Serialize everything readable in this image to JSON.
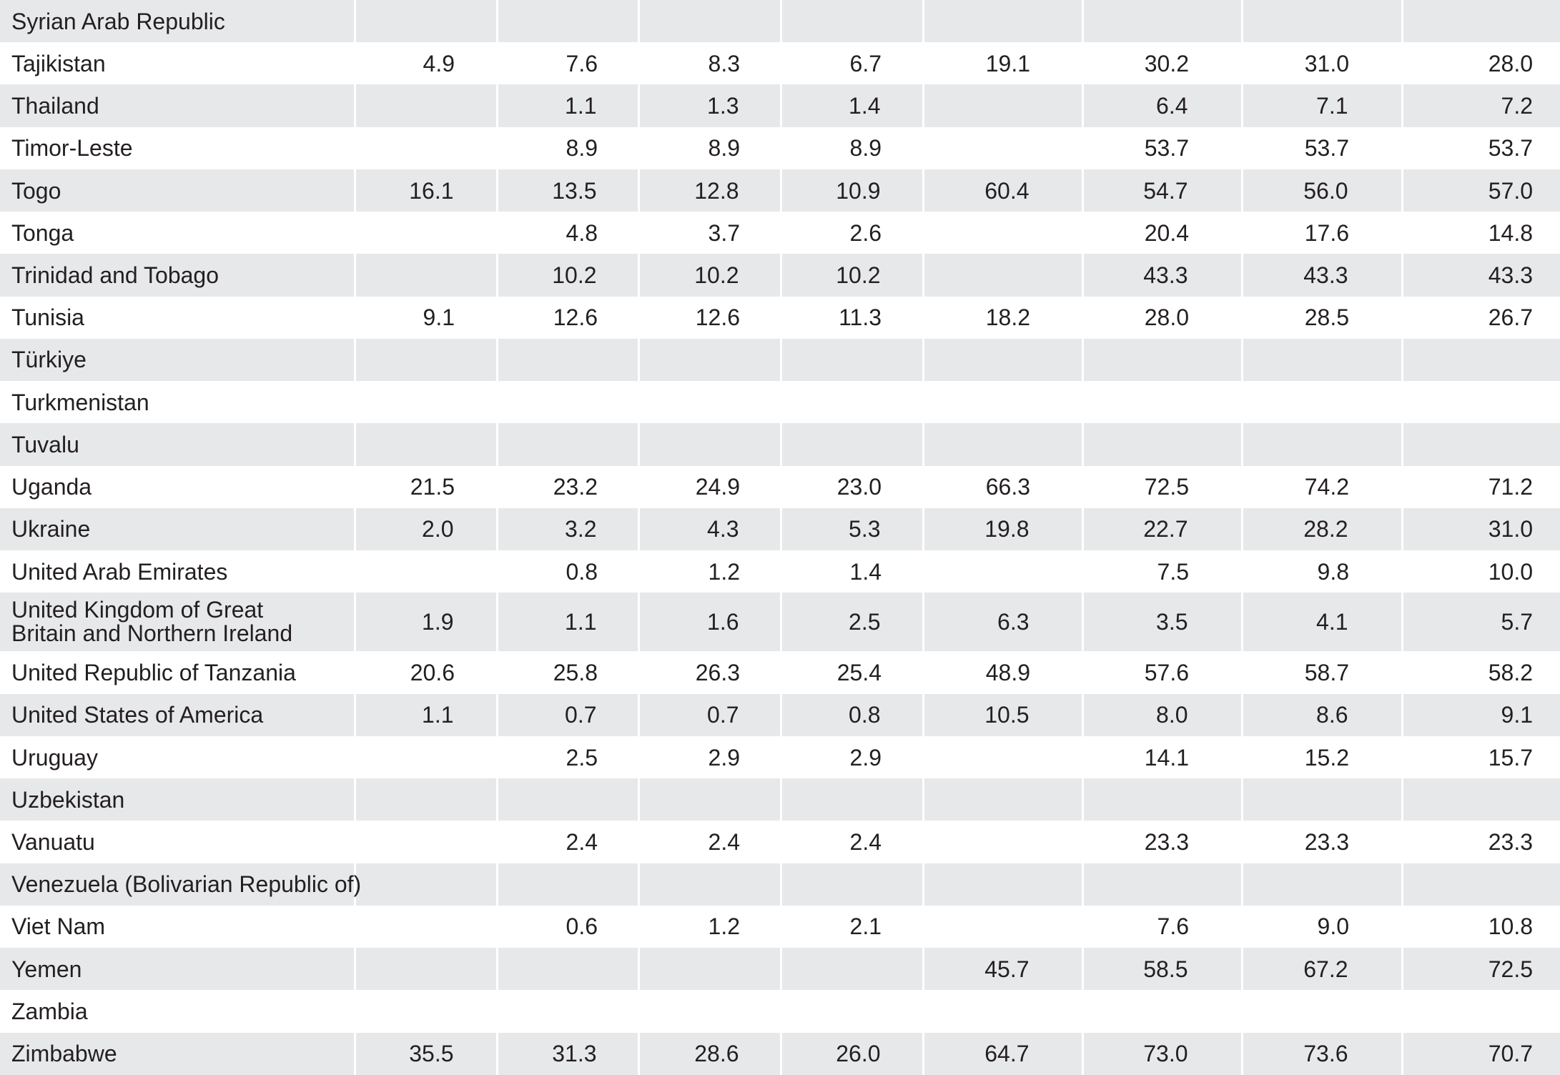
{
  "table": {
    "rows": [
      {
        "country": "Syrian Arab Republic",
        "values": [
          "",
          "",
          "",
          "",
          "",
          "",
          "",
          ""
        ]
      },
      {
        "country": "Tajikistan",
        "values": [
          "4.9",
          "7.6",
          "8.3",
          "6.7",
          "19.1",
          "30.2",
          "31.0",
          "28.0"
        ]
      },
      {
        "country": "Thailand",
        "values": [
          "",
          "1.1",
          "1.3",
          "1.4",
          "",
          "6.4",
          "7.1",
          "7.2"
        ]
      },
      {
        "country": "Timor-Leste",
        "values": [
          "",
          "8.9",
          "8.9",
          "8.9",
          "",
          "53.7",
          "53.7",
          "53.7"
        ]
      },
      {
        "country": "Togo",
        "values": [
          "16.1",
          "13.5",
          "12.8",
          "10.9",
          "60.4",
          "54.7",
          "56.0",
          "57.0"
        ]
      },
      {
        "country": "Tonga",
        "values": [
          "",
          "4.8",
          "3.7",
          "2.6",
          "",
          "20.4",
          "17.6",
          "14.8"
        ]
      },
      {
        "country": "Trinidad and Tobago",
        "values": [
          "",
          "10.2",
          "10.2",
          "10.2",
          "",
          "43.3",
          "43.3",
          "43.3"
        ]
      },
      {
        "country": "Tunisia",
        "values": [
          "9.1",
          "12.6",
          "12.6",
          "11.3",
          "18.2",
          "28.0",
          "28.5",
          "26.7"
        ]
      },
      {
        "country": "Türkiye",
        "values": [
          "",
          "",
          "",
          "",
          "",
          "",
          "",
          ""
        ]
      },
      {
        "country": "Turkmenistan",
        "values": [
          "",
          "",
          "",
          "",
          "",
          "",
          "",
          ""
        ]
      },
      {
        "country": "Tuvalu",
        "values": [
          "",
          "",
          "",
          "",
          "",
          "",
          "",
          ""
        ]
      },
      {
        "country": "Uganda",
        "values": [
          "21.5",
          "23.2",
          "24.9",
          "23.0",
          "66.3",
          "72.5",
          "74.2",
          "71.2"
        ]
      },
      {
        "country": "Ukraine",
        "values": [
          "2.0",
          "3.2",
          "4.3",
          "5.3",
          "19.8",
          "22.7",
          "28.2",
          "31.0"
        ]
      },
      {
        "country": "United Arab Emirates",
        "values": [
          "",
          "0.8",
          "1.2",
          "1.4",
          "",
          "7.5",
          "9.8",
          "10.0"
        ]
      },
      {
        "country": "United Kingdom of Great Britain and Northern Ireland",
        "values": [
          "1.9",
          "1.1",
          "1.6",
          "2.5",
          "6.3",
          "3.5",
          "4.1",
          "5.7"
        ]
      },
      {
        "country": "United Republic of Tanzania",
        "values": [
          "20.6",
          "25.8",
          "26.3",
          "25.4",
          "48.9",
          "57.6",
          "58.7",
          "58.2"
        ]
      },
      {
        "country": "United States of America",
        "values": [
          "1.1",
          "0.7",
          "0.7",
          "0.8",
          "10.5",
          "8.0",
          "8.6",
          "9.1"
        ]
      },
      {
        "country": "Uruguay",
        "values": [
          "",
          "2.5",
          "2.9",
          "2.9",
          "",
          "14.1",
          "15.2",
          "15.7"
        ]
      },
      {
        "country": "Uzbekistan",
        "values": [
          "",
          "",
          "",
          "",
          "",
          "",
          "",
          ""
        ]
      },
      {
        "country": "Vanuatu",
        "values": [
          "",
          "2.4",
          "2.4",
          "2.4",
          "",
          "23.3",
          "23.3",
          "23.3"
        ]
      },
      {
        "country": "Venezuela (Bolivarian Republic of)",
        "values": [
          "",
          "",
          "",
          "",
          "",
          "",
          "",
          ""
        ]
      },
      {
        "country": "Viet Nam",
        "values": [
          "",
          "0.6",
          "1.2",
          "2.1",
          "",
          "7.6",
          "9.0",
          "10.8"
        ]
      },
      {
        "country": "Yemen",
        "values": [
          "",
          "",
          "",
          "",
          "45.7",
          "58.5",
          "67.2",
          "72.5"
        ]
      },
      {
        "country": "Zambia",
        "values": [
          "",
          "",
          "",
          "",
          "",
          "",
          "",
          ""
        ]
      },
      {
        "country": "Zimbabwe",
        "values": [
          "35.5",
          "31.3",
          "28.6",
          "26.0",
          "64.7",
          "73.0",
          "73.6",
          "70.7"
        ]
      }
    ]
  }
}
